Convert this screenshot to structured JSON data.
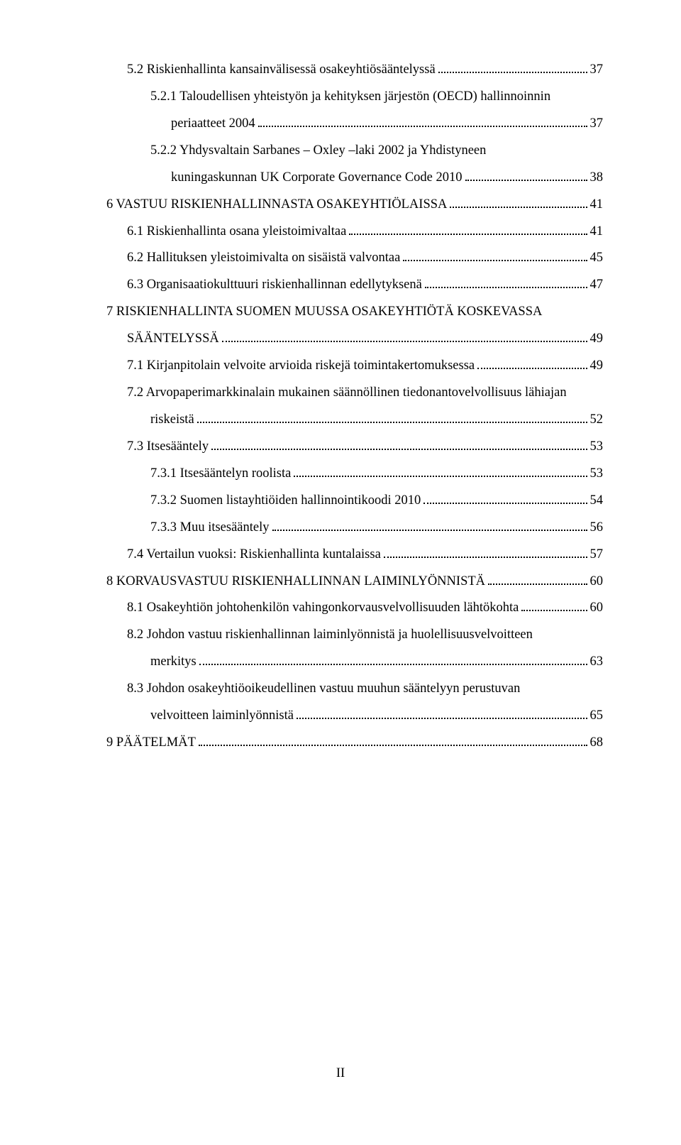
{
  "colors": {
    "text": "#000000",
    "background": "#ffffff",
    "dot": "#000000"
  },
  "typography": {
    "font_family": "Times New Roman",
    "font_size_pt": 12,
    "line_height": 2.05
  },
  "page_footer": "II",
  "toc": [
    {
      "level": 1,
      "label": "5.2 Riskienhallinta kansainvälisessä osakeyhtiösääntelyssä",
      "page": "37"
    },
    {
      "level": 2,
      "label": "5.2.1 Taloudellisen yhteistyön ja kehityksen järjestön (OECD) hallinnoinnin",
      "cont": "periaatteet 2004",
      "page": "37"
    },
    {
      "level": 2,
      "label": "5.2.2 Yhdysvaltain  Sarbanes  –  Oxley –laki  2002  ja  Yhdistyneen",
      "cont": "kuningaskunnan UK Corporate Governance Code 2010",
      "page": "38"
    },
    {
      "level": 0,
      "label": "6 VASTUU RISKIENHALLINNASTA OSAKEYHTIÖLAISSA",
      "page": "41"
    },
    {
      "level": 1,
      "label": "6.1 Riskienhallinta osana yleistoimivaltaa",
      "page": "41"
    },
    {
      "level": 1,
      "label": "6.2 Hallituksen yleistoimivalta on sisäistä valvontaa",
      "page": "45"
    },
    {
      "level": 1,
      "label": "6.3 Organisaatiokulttuuri riskienhallinnan edellytyksenä",
      "page": "47"
    },
    {
      "level": 0,
      "label": "7 RISKIENHALLINTA SUOMEN MUUSSA OSAKEYHTIÖTÄ KOSKEVASSA",
      "cont": "SÄÄNTELYSSÄ",
      "cont_level": 1,
      "page": "49"
    },
    {
      "level": 1,
      "label": "7.1 Kirjanpitolain velvoite arvioida riskejä toimintakertomuksessa",
      "page": "49"
    },
    {
      "level": 1,
      "label": "7.2 Arvopaperimarkkinalain mukainen säännöllinen tiedonantovelvollisuus lähiajan",
      "cont": "riskeistä",
      "page": "52"
    },
    {
      "level": 1,
      "label": "7.3 Itsesääntely",
      "page": "53"
    },
    {
      "level": 2,
      "label": "7.3.1 Itsesääntelyn roolista",
      "page": "53"
    },
    {
      "level": 2,
      "label": "7.3.2 Suomen listayhtiöiden hallinnointikoodi 2010",
      "page": "54"
    },
    {
      "level": 2,
      "label": "7.3.3 Muu itsesääntely",
      "page": "56"
    },
    {
      "level": 1,
      "label": "7.4 Vertailun vuoksi: Riskienhallinta kuntalaissa",
      "page": "57"
    },
    {
      "level": 0,
      "label": "8 KORVAUSVASTUU RISKIENHALLINNAN LAIMINLYÖNNISTÄ",
      "page": "60"
    },
    {
      "level": 1,
      "label": "8.1 Osakeyhtiön johtohenkilön vahingonkorvausvelvollisuuden lähtökohta",
      "page": "60"
    },
    {
      "level": 1,
      "label": "8.2 Johdon vastuu riskienhallinnan laiminlyönnistä ja huolellisuusvelvoitteen",
      "cont": "merkitys",
      "page": "63"
    },
    {
      "level": 1,
      "label": "8.3 Johdon osakeyhtiöoikeudellinen vastuu muuhun sääntelyyn perustuvan",
      "cont": "velvoitteen laiminlyönnistä",
      "page": "65"
    },
    {
      "level": 0,
      "label": "9 PÄÄTELMÄT",
      "page": "68"
    }
  ]
}
